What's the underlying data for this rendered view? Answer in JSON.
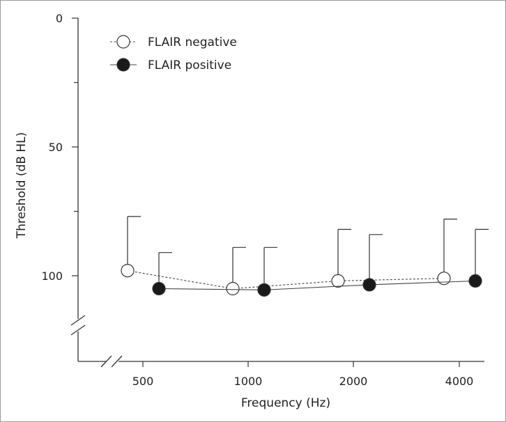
{
  "chart_data": {
    "type": "line",
    "title": "",
    "xlabel": "Frequency (Hz)",
    "ylabel": "Threshold (dB HL)",
    "y_axis_inverted": true,
    "ylim": [
      0,
      120
    ],
    "y_ticks": [
      0,
      50,
      100
    ],
    "y_tick_labels": [
      "0",
      "50",
      "100"
    ],
    "y_axis_break": true,
    "x_axis_break": true,
    "x_scale": "octave (log2)",
    "categories": [
      "500",
      "1000",
      "2000",
      "4000"
    ],
    "legend_position": "top-left",
    "error_bars": "upward (toward lower threshold)",
    "series": [
      {
        "name": "FLAIR negative",
        "marker": "open-circle",
        "line_style": "dashed",
        "values": [
          98,
          105,
          102,
          101
        ],
        "error_upper": [
          77,
          89,
          82,
          78
        ]
      },
      {
        "name": "FLAIR positive",
        "marker": "filled-circle",
        "line_style": "solid",
        "values": [
          105,
          105.5,
          103.5,
          102
        ],
        "error_upper": [
          91,
          89,
          84,
          82
        ]
      }
    ]
  },
  "legend": {
    "items": [
      {
        "label": "FLAIR negative"
      },
      {
        "label": "FLAIR positive"
      }
    ]
  }
}
